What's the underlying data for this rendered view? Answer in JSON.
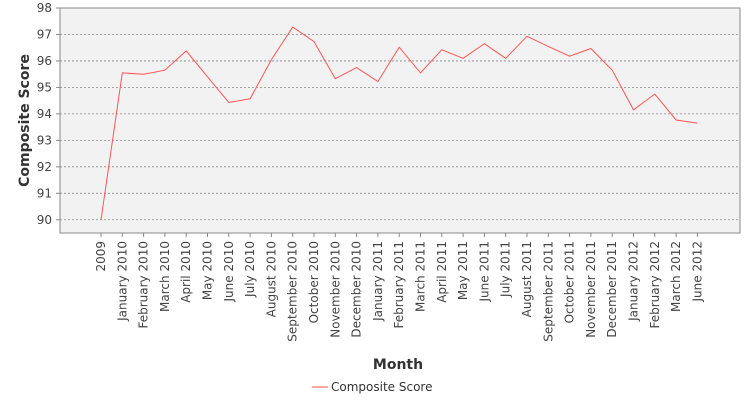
{
  "chart_data": {
    "type": "line",
    "title": "",
    "xlabel": "Month",
    "ylabel": "Composite Score",
    "ylim": [
      89.5,
      98
    ],
    "y_ticks": [
      90,
      91,
      92,
      93,
      94,
      95,
      96,
      97,
      98
    ],
    "grid": true,
    "legend_position": "bottom-center",
    "categories": [
      "2009",
      "January 2010",
      "February 2010",
      "March 2010",
      "April 2010",
      "May 2010",
      "June 2010",
      "July 2010",
      "August 2010",
      "September 2010",
      "October 2010",
      "November 2010",
      "December 2010",
      "January 2011",
      "February 2011",
      "March 2011",
      "April 2011",
      "May 2011",
      "June 2011",
      "July 2011",
      "August 2011",
      "September 2011",
      "October 2011",
      "November 2011",
      "December 2011",
      "January 2012",
      "February 2012",
      "March 2012",
      "June 2012"
    ],
    "series": [
      {
        "name": "Composite Score",
        "color": "#ff5555",
        "values": [
          90.0,
          95.55,
          95.5,
          95.65,
          96.38,
          95.4,
          94.43,
          94.57,
          96.05,
          97.28,
          96.73,
          95.33,
          95.75,
          95.22,
          96.52,
          95.55,
          96.42,
          96.1,
          96.65,
          96.1,
          96.93,
          96.55,
          96.18,
          96.47,
          95.65,
          94.15,
          94.75,
          93.77,
          93.65
        ]
      }
    ]
  },
  "colors": {
    "plot_background": "#f2f2f2",
    "grid": "#888888",
    "axis": "#888888"
  }
}
